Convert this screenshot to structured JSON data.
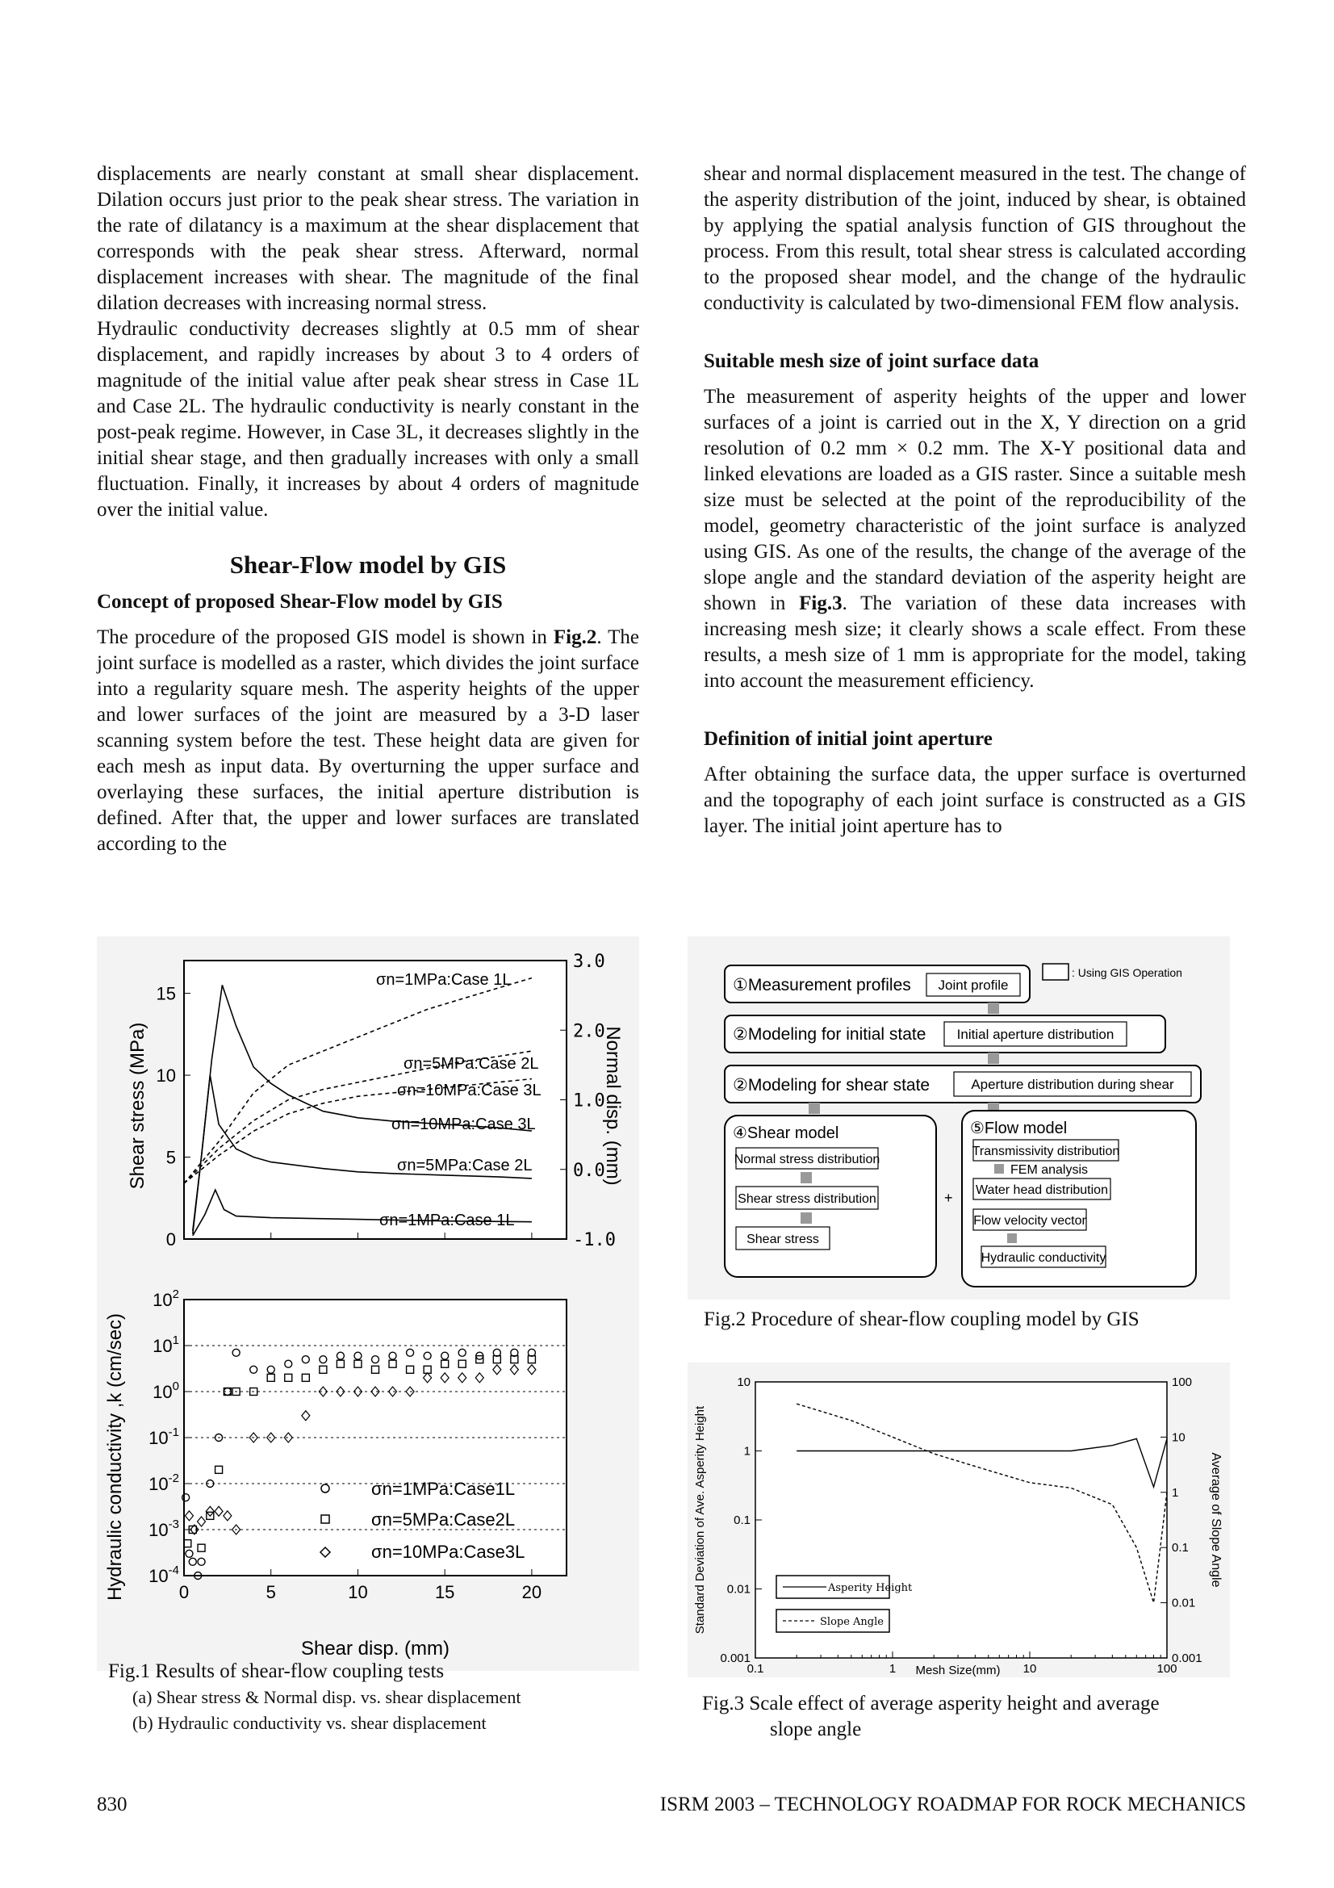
{
  "left_column": {
    "para1": "displacements are nearly constant at small shear displacement. Dilation occurs just prior to the peak shear stress. The variation in the rate of dilatancy is a maximum at the shear displacement that corresponds with the peak shear stress. Afterward, normal displacement increases with shear. The magnitude of the final dilation decreases with increasing normal stress.",
    "para2": "Hydraulic conductivity decreases slightly at 0.5 mm of shear displacement, and rapidly increases by about 3 to 4 orders of magnitude of the initial value after peak shear stress in Case 1L and Case 2L. The hydraulic conductivity is nearly constant in the post-peak regime. However, in Case 3L, it decreases slightly in the initial shear stage, and then gradually increases with only a small fluctuation. Finally, it increases by about 4 orders of magnitude over the initial value.",
    "section_title": "Shear-Flow model by GIS",
    "subsection_title": "Concept of proposed Shear-Flow model by GIS",
    "para3_a": "The procedure of the proposed GIS model is shown in ",
    "para3_ref": "Fig.2",
    "para3_b": ". The joint surface is modelled as a raster, which divides the joint surface into a regularity square mesh. The asperity heights of the upper and lower surfaces of the joint are measured by a 3-D laser scanning system before the test. These height data are given for each mesh as input data. By overturning the upper surface and overlaying these surfaces, the initial aperture distribution is defined. After that, the upper and lower surfaces are translated according to the"
  },
  "right_column": {
    "para1": "shear and normal displacement measured in the test. The change of the asperity distribution of the joint, induced by shear, is obtained by applying the spatial analysis function of GIS throughout the process. From this result, total shear stress is calculated according to the proposed shear model, and the change of the hydraulic conductivity is calculated by two-dimensional FEM flow analysis.",
    "heading1": "Suitable mesh size of joint surface data",
    "para2_a": "The measurement of asperity heights of the upper and lower surfaces of a joint is carried out in the X, Y direction on a grid resolution of 0.2 mm × 0.2 mm. The X-Y positional data and linked elevations are loaded as a GIS raster. Since a suitable mesh size must be selected at the point of the reproducibility of the model, geometry characteristic of the joint surface is analyzed using GIS. As one of the results, the change of the average of the slope angle and the standard deviation of the asperity height are shown in ",
    "para2_ref": "Fig.3",
    "para2_b": ". The variation of these data increases with increasing mesh size; it clearly shows a scale effect. From these results, a mesh size of 1 mm is appropriate for the model, taking into account the measurement efficiency.",
    "heading2": "Definition of initial joint aperture",
    "para3": "After obtaining the surface data, the upper surface is overturned and the topography of each joint surface is constructed as a GIS layer. The initial joint aperture has to"
  },
  "fig1": {
    "caption": "Fig.1  Results of shear-flow coupling tests",
    "sub_a": "(a) Shear stress & Normal disp. vs. shear displacement",
    "sub_b": "(b) Hydraulic conductivity vs. shear displacement",
    "panel_a_label": "(a)",
    "panel_b_label": "(b)",
    "ylabel_a": "Shear stress (MPa)",
    "ylabel_a_right": "Normal disp. (mm)",
    "ylabel_b": "Hydraulic conductivity ,k (cm/sec)",
    "xlabel": "Shear disp. (mm)",
    "curve_labels": [
      "σn=1MPa:Case 1L",
      "σn=5MPa:Case 2L",
      "σn=10MPa:Case 3L",
      "σn=10MPa:Case 3L",
      "σn=5MPa:Case 2L",
      "σn=1MPa:Case 1L"
    ],
    "legend_b": [
      "σn=1MPa:Case1L",
      "σn=5MPa:Case2L",
      "σn=10MPa:Case3L"
    ]
  },
  "fig2": {
    "caption": "Fig.2  Procedure of shear-flow coupling model by GIS",
    "legend_note": ": Using GIS Operation",
    "step1": "①Measurement profiles",
    "step1_box": "Joint profile",
    "step2": "②Modeling for initial state",
    "step2_box": "Initial aperture distribution",
    "step3": "②Modeling for shear state",
    "step3_box": "Aperture distribution during shear",
    "shear_model": "④Shear model",
    "shear_items": [
      "Normal stress distribution",
      "Shear stress distribution",
      "Shear stress"
    ],
    "flow_model": "⑤Flow model",
    "flow_items": [
      "Transmissivity distribution",
      "Water head distribution",
      "Flow velocity vector",
      "Hydraulic conductivity"
    ],
    "fem": "FEM analysis",
    "plus": "+"
  },
  "fig3": {
    "caption_line1": "Fig.3  Scale effect of average asperity height and average",
    "caption_line2": "slope angle",
    "xlabel": "Mesh Size(mm)",
    "ylabel_left": "Standard Deviation of Ave. Asperity Height",
    "ylabel_right": "Average of Slope Angle",
    "legend": [
      "Asperity Height",
      "Slope Angle"
    ]
  },
  "chart_data": [
    {
      "type": "line",
      "title": "(a)",
      "xlabel": "Shear disp. (mm)",
      "ylabel": "Shear stress (MPa)",
      "y2label": "Normal disp. (mm)",
      "xlim": [
        0,
        22
      ],
      "ylim": [
        0,
        17
      ],
      "y2lim": [
        -1.0,
        3.0
      ],
      "xticks": [
        0,
        5,
        10,
        15,
        20
      ],
      "yticks": [
        0,
        5,
        10,
        15
      ],
      "y2ticks": [
        "-1.0",
        "0.0",
        "1.0",
        "2.0",
        "3.0"
      ],
      "series": [
        {
          "name": "σn=10MPa:Case 3L",
          "axis": "left",
          "style": "solid",
          "x": [
            0.5,
            1.0,
            1.6,
            2.2,
            3,
            4,
            5,
            6,
            7,
            8,
            10,
            12,
            15,
            18,
            20
          ],
          "values": [
            0.5,
            5,
            11,
            15.5,
            13,
            10.5,
            9.5,
            8.8,
            8.3,
            7.8,
            7.4,
            7.2,
            7.0,
            6.8,
            6.6
          ]
        },
        {
          "name": "σn=5MPa:Case 2L",
          "axis": "left",
          "style": "solid",
          "x": [
            0.5,
            1.0,
            1.5,
            2.0,
            3,
            4,
            5,
            8,
            10,
            12,
            15,
            18,
            20
          ],
          "values": [
            0.3,
            5,
            10,
            7,
            5.5,
            5.0,
            4.7,
            4.3,
            4.1,
            4.0,
            3.9,
            3.8,
            3.7
          ]
        },
        {
          "name": "σn=1MPa:Case 1L",
          "axis": "left",
          "style": "solid",
          "x": [
            0.5,
            1.2,
            1.8,
            2.3,
            3,
            5,
            10,
            15,
            20
          ],
          "values": [
            0.2,
            1.5,
            3.0,
            1.8,
            1.4,
            1.3,
            1.2,
            1.1,
            1.05
          ]
        },
        {
          "name": "σn=1MPa:Case 1L",
          "axis": "right",
          "style": "dashed",
          "x": [
            0,
            2,
            4,
            6,
            8,
            10,
            12,
            14,
            16,
            18,
            20
          ],
          "values": [
            -0.2,
            0.4,
            1.1,
            1.5,
            1.7,
            1.9,
            2.1,
            2.3,
            2.45,
            2.6,
            2.75
          ]
        },
        {
          "name": "σn=5MPa:Case 2L",
          "axis": "right",
          "style": "dashed",
          "x": [
            0,
            2,
            4,
            6,
            8,
            10,
            12,
            14,
            16,
            18,
            20
          ],
          "values": [
            -0.2,
            0.3,
            0.7,
            1.0,
            1.15,
            1.25,
            1.35,
            1.45,
            1.55,
            1.62,
            1.7
          ]
        },
        {
          "name": "σn=10MPa:Case 3L",
          "axis": "right",
          "style": "dashed",
          "x": [
            0,
            2,
            4,
            6,
            8,
            10,
            12,
            14,
            16,
            18,
            20
          ],
          "values": [
            -0.2,
            0.2,
            0.55,
            0.8,
            0.95,
            1.05,
            1.1,
            1.15,
            1.2,
            1.25,
            1.3
          ]
        }
      ]
    },
    {
      "type": "scatter",
      "title": "(b)",
      "xlabel": "Shear disp. (mm)",
      "ylabel": "Hydraulic conductivity ,k (cm/sec)",
      "yscale": "log",
      "xlim": [
        0,
        22
      ],
      "ylim": [
        0.0001,
        100
      ],
      "xticks": [
        0,
        5,
        10,
        15,
        20
      ],
      "yticks": [
        "10^-4",
        "10^-3",
        "10^-2",
        "10^-1",
        "10^0",
        "10^1",
        "10^2"
      ],
      "legend": [
        "σn=1MPa:Case1L",
        "σn=5MPa:Case2L",
        "σn=10MPa:Case3L"
      ],
      "series": [
        {
          "name": "σn=1MPa:Case1L",
          "marker": "circle",
          "x": [
            0.1,
            0.3,
            0.5,
            0.8,
            1.0,
            1.5,
            2.0,
            2.5,
            3,
            4,
            5,
            6,
            7,
            8,
            9,
            10,
            11,
            12,
            13,
            14,
            15,
            16,
            17,
            18,
            19,
            20
          ],
          "values": [
            0.005,
            0.0003,
            0.0002,
            0.0001,
            0.0002,
            0.01,
            0.1,
            1,
            7,
            3,
            3,
            4,
            5,
            5,
            6,
            6,
            5,
            6,
            7,
            6,
            6,
            7,
            6,
            7,
            7,
            7
          ]
        },
        {
          "name": "σn=5MPa:Case2L",
          "marker": "square",
          "x": [
            0.2,
            0.5,
            1.0,
            1.5,
            2.0,
            2.5,
            3,
            4,
            5,
            6,
            7,
            8,
            9,
            10,
            11,
            12,
            13,
            14,
            15,
            16,
            17,
            18,
            19,
            20
          ],
          "values": [
            0.0005,
            0.001,
            0.0004,
            0.002,
            0.02,
            1,
            1,
            1,
            2,
            2,
            2,
            3,
            4,
            4,
            3,
            4,
            3,
            3,
            4,
            4,
            5,
            5,
            5,
            5
          ]
        },
        {
          "name": "σn=10MPa:Case3L",
          "marker": "diamond",
          "x": [
            0.3,
            0.6,
            1.0,
            1.5,
            2.0,
            2.5,
            3,
            4,
            5,
            6,
            7,
            8,
            9,
            10,
            11,
            12,
            13,
            14,
            15,
            16,
            17,
            18,
            19,
            20
          ],
          "values": [
            0.002,
            0.001,
            0.0015,
            0.0025,
            0.0025,
            0.002,
            0.001,
            0.1,
            0.1,
            0.1,
            0.3,
            1,
            1,
            1,
            1,
            1,
            1,
            2,
            2,
            2,
            2,
            3,
            3,
            3
          ]
        }
      ]
    },
    {
      "type": "line",
      "title": "",
      "xlabel": "Mesh Size(mm)",
      "ylabel": "Standard Deviation of Ave. Asperity Height",
      "y2label": "Average of Slope Angle",
      "xscale": "log",
      "yscale": "log",
      "y2scale": "log",
      "xlim": [
        0.1,
        100
      ],
      "ylim": [
        0.001,
        10
      ],
      "y2lim": [
        0.001,
        100
      ],
      "xticks": [
        "0.1",
        "1",
        "10",
        "100"
      ],
      "yticks": [
        "0.001",
        "0.01",
        "0.1",
        "1",
        "10"
      ],
      "y2ticks": [
        "0.001",
        "0.01",
        "0.1",
        "1",
        "10",
        "100"
      ],
      "legend": [
        "Asperity Height",
        "Slope Angle"
      ],
      "series": [
        {
          "name": "Asperity Height",
          "axis": "left",
          "style": "solid",
          "x": [
            0.2,
            0.5,
            1,
            2,
            5,
            10,
            20,
            40,
            60,
            80,
            100
          ],
          "values": [
            1,
            1,
            1,
            1,
            1,
            1,
            1,
            1.2,
            1.5,
            0.3,
            1.5
          ]
        },
        {
          "name": "Slope Angle",
          "axis": "right",
          "style": "dashed",
          "x": [
            0.2,
            0.5,
            1,
            2,
            5,
            10,
            20,
            40,
            60,
            80,
            100
          ],
          "values": [
            40,
            20,
            10,
            5,
            2.5,
            1.5,
            1.2,
            0.6,
            0.1,
            0.01,
            1
          ]
        }
      ]
    }
  ],
  "footer": {
    "page_number": "830",
    "conference": "ISRM 2003 – TECHNOLOGY ROADMAP FOR ROCK MECHANICS"
  }
}
